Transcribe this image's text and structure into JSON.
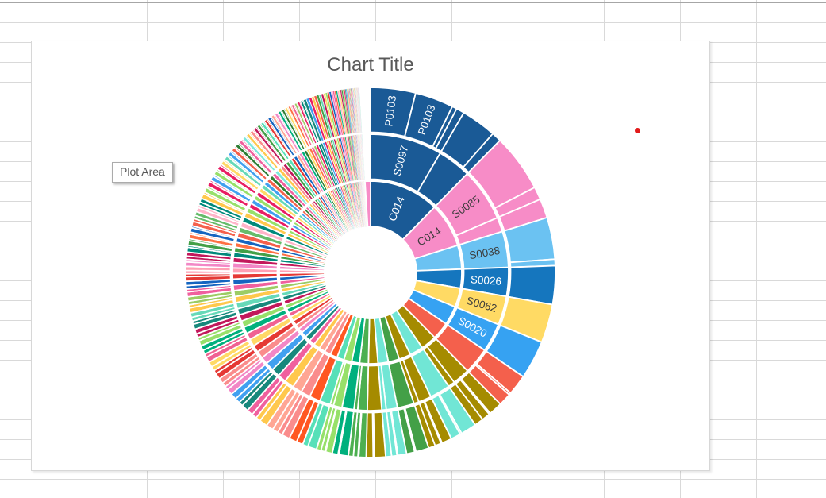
{
  "tooltip": {
    "text": "Plot Area"
  },
  "marker": {
    "color": "#E21B1B"
  },
  "sheet": {
    "gridline_color": "#D9D9D9",
    "top_border_color": "#A6A6A6"
  },
  "chart_data": {
    "type": "pie",
    "subtype": "sunburst",
    "title": "Chart Title",
    "title_color": "#595959",
    "rings": 3,
    "hole_radius_px": 58,
    "outer_radius_px": 233,
    "labeled_segments": {
      "ring1": [
        "C014",
        "C014"
      ],
      "ring2": [
        "S0097",
        "S0085",
        "S0038",
        "S0026",
        "S0062",
        "S0020"
      ],
      "ring3": [
        "P0103",
        "P0103"
      ]
    },
    "groups": [
      {
        "v": 44,
        "c": "#1A5A96",
        "label": "C014",
        "l2": [
          {
            "v": 30,
            "label": "S0097",
            "l3": [
              {
                "v": 14,
                "label": "P0103"
              },
              {
                "v": 12,
                "label": "P0103"
              },
              {
                "v": 1.5
              },
              {
                "v": 2.5
              }
            ]
          },
          {
            "v": 14,
            "l3": [
              {
                "v": 11
              },
              {
                "v": 3
              }
            ]
          }
        ]
      },
      {
        "v": 28,
        "c": "#F78CC7",
        "label": "C014",
        "l2": [
          {
            "v": 22,
            "label": "S0085",
            "l3": [
              {
                "v": 18
              },
              {
                "v": 4
              }
            ]
          },
          {
            "v": 6,
            "l3": [
              {
                "v": 6
              }
            ]
          }
        ]
      },
      {
        "v": 15,
        "c": "#6BC2F2",
        "l2": [
          {
            "v": 15,
            "label": "S0038",
            "l3": [
              {
                "v": 13
              },
              {
                "v": 2
              }
            ]
          }
        ]
      },
      {
        "v": 12,
        "c": "#1576BE",
        "l2": [
          {
            "v": 12,
            "label": "S0026",
            "l3": [
              {
                "v": 12
              }
            ]
          }
        ]
      },
      {
        "v": 12,
        "c": "#FFDA64",
        "l2": [
          {
            "v": 12,
            "label": "S0062",
            "l3": [
              {
                "v": 12
              }
            ]
          }
        ]
      },
      {
        "v": 12,
        "c": "#36A2F2",
        "l2": [
          {
            "v": 12,
            "label": "S0020",
            "l3": [
              {
                "v": 12
              }
            ]
          }
        ]
      },
      [
        11,
        "#F4604C"
      ],
      [
        10,
        "#A58B00"
      ],
      [
        8.5,
        "#71E6D5"
      ],
      [
        7.5,
        "#A58B00"
      ],
      [
        7,
        "#43A047"
      ],
      [
        6.5,
        "#71E6D5"
      ],
      [
        6,
        "#A58B00"
      ],
      [
        5.5,
        "#4CAF50"
      ],
      [
        5,
        "#00B07D"
      ],
      [
        5,
        "#97E06A"
      ],
      [
        4.5,
        "#57E0B8"
      ],
      [
        4.5,
        "#FF5722"
      ],
      [
        4,
        "#FA8C8C"
      ],
      [
        4,
        "#FFA694"
      ],
      [
        4,
        "#FFC84D"
      ],
      [
        3.5,
        "#F0609E"
      ],
      [
        3.5,
        "#17887C"
      ],
      [
        3.5,
        "#41A0F0"
      ],
      [
        3,
        "#F287C6"
      ],
      [
        3,
        "#FA8C8C"
      ],
      [
        3,
        "#E53935"
      ],
      [
        3,
        "#FFD966"
      ],
      [
        2.8,
        "#F06292"
      ],
      [
        2.8,
        "#00B07D"
      ],
      [
        2.7,
        "#97E06A"
      ],
      [
        2.7,
        "#C2185B"
      ],
      [
        2.6,
        "#17887C"
      ],
      [
        2.6,
        "#66D9B8"
      ],
      [
        2.5,
        "#FFC84D"
      ],
      [
        2.5,
        "#9CCC65"
      ],
      [
        2.4,
        "#F0609E"
      ],
      [
        2.4,
        "#1565C0"
      ],
      [
        2.3,
        "#E53935"
      ],
      [
        2.3,
        "#FFA0B4"
      ],
      [
        2.2,
        "#F287C6"
      ],
      [
        2.2,
        "#C2185B"
      ],
      [
        2.1,
        "#00897B"
      ],
      [
        2.1,
        "#43A047"
      ],
      [
        2,
        "#FF7043"
      ],
      [
        2,
        "#1565C0"
      ],
      [
        2.3,
        "#F4604C"
      ],
      [
        2.25,
        "#66BB6A"
      ],
      [
        2.2,
        "#FFB3C8"
      ],
      [
        2.2,
        "#00897B"
      ],
      [
        2.15,
        "#FFC84D"
      ],
      [
        2.1,
        "#97E06A"
      ],
      [
        2.05,
        "#E91E63"
      ],
      [
        2,
        "#41A0F0"
      ],
      [
        1.9,
        "#97E06A"
      ],
      [
        1.9,
        "#E91E63"
      ],
      [
        1.8,
        "#FFD966"
      ],
      [
        1.8,
        "#66D9B8"
      ],
      [
        1.7,
        "#41A0F0"
      ],
      [
        1.7,
        "#F4604C"
      ],
      [
        1.6,
        "#2E7D32"
      ],
      [
        1.6,
        "#F0609E"
      ],
      [
        1.5,
        "#7CE8DC"
      ],
      [
        1.5,
        "#FFC84D"
      ],
      [
        1.45,
        "#FA8C8C"
      ],
      [
        1.4,
        "#C2185B"
      ],
      [
        1.4,
        "#43A047"
      ],
      [
        1.35,
        "#57E0B8"
      ],
      [
        1.3,
        "#E53935"
      ],
      [
        1.3,
        "#1565C0"
      ],
      [
        1.25,
        "#FFA694"
      ],
      [
        1.2,
        "#F287C6"
      ],
      [
        1.2,
        "#00B07D"
      ],
      [
        1.15,
        "#2E7D32"
      ],
      [
        1.1,
        "#FFD966"
      ],
      [
        1.1,
        "#FF7043"
      ],
      [
        1.05,
        "#F06292"
      ],
      [
        1,
        "#9CCC65"
      ],
      [
        1,
        "#E91E63"
      ],
      [
        1,
        "#00897B"
      ],
      [
        0.9,
        "#17887C"
      ],
      [
        0.9,
        "#41A0F0"
      ],
      [
        0.85,
        "#E91E63"
      ],
      [
        0.8,
        "#FFC84D"
      ],
      [
        0.8,
        "#F4604C"
      ],
      [
        0.75,
        "#43A047"
      ],
      [
        0.7,
        "#66D9B8"
      ],
      [
        0.7,
        "#C2185B"
      ],
      [
        0.65,
        "#FFD966"
      ],
      [
        0.6,
        "#97E06A"
      ],
      [
        0.6,
        "#E53935"
      ],
      [
        0.6,
        "#1565C0"
      ],
      [
        0.55,
        "#F287C6"
      ],
      [
        0.5,
        "#F0609E"
      ],
      [
        0.5,
        "#FF7043"
      ],
      [
        0.45,
        "#00B07D"
      ],
      [
        0.45,
        "#FFB3C8"
      ],
      [
        0.4,
        "#FFD966"
      ],
      [
        0.4,
        "#C2185B"
      ],
      [
        0.4,
        "#43A047"
      ],
      [
        0.35,
        "#9CCC65"
      ],
      [
        0.35,
        "#E91E63"
      ],
      [
        0.3,
        "#17887C"
      ],
      [
        0.3,
        "#41A0F0"
      ],
      [
        0.25,
        "#FFC84D"
      ],
      [
        0.25,
        "#F4604C"
      ],
      [
        0.2,
        "#66D9B8"
      ],
      [
        0.2,
        "#C2185B"
      ],
      [
        0.2,
        "#97E06A"
      ],
      [
        0.2,
        "#E53935"
      ],
      [
        0.2,
        "#1565C0"
      ],
      [
        0.2,
        "#F0609E"
      ],
      [
        0.15,
        "#F287C6"
      ],
      [
        0.15,
        "#00B07D"
      ],
      [
        0.15,
        "#FFD966"
      ],
      [
        0.15,
        "#FF7043"
      ],
      [
        0.15,
        "#9CCC65"
      ],
      [
        0.15,
        "#E91E63"
      ],
      [
        0.1,
        "#17887C"
      ],
      [
        0.1,
        "#41A0F0"
      ],
      [
        0.1,
        "#FFC84D"
      ],
      [
        0.1,
        "#F4604C"
      ],
      [
        0.1,
        "#66D9B8"
      ],
      [
        0.1,
        "#C2185B"
      ],
      [
        0.1,
        "#97E06A"
      ],
      [
        0.1,
        "#E53935"
      ],
      [
        0.1,
        "#1565C0"
      ],
      [
        0.1,
        "#F0609E"
      ],
      [
        0.1,
        "#F287C6"
      ],
      [
        0.1,
        "#00B07D"
      ],
      {
        "v": 3.5,
        "c": "#F78CC7",
        "rings": 1
      }
    ]
  }
}
